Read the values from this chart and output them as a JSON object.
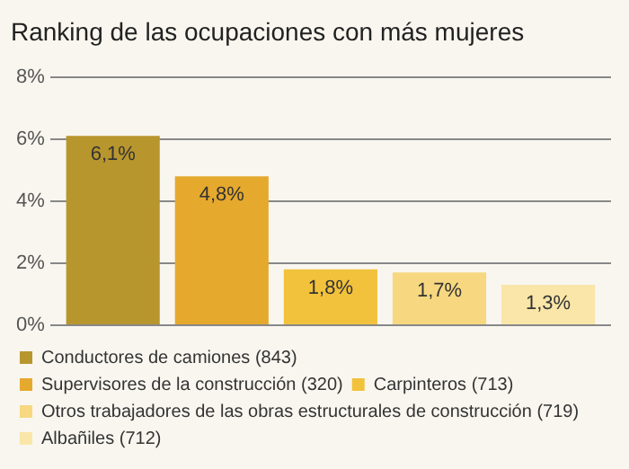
{
  "chart_data": {
    "type": "bar",
    "title": "Ranking de las ocupaciones con más mujeres",
    "categories": [
      null
    ],
    "series": [
      {
        "name": "Conductores de camiones (843)",
        "color": "#b8962e",
        "values": [
          6.1
        ],
        "value_labels": [
          "6,1%"
        ]
      },
      {
        "name": "Supervisores de la construcción (320)",
        "color": "#e5a92d",
        "values": [
          4.8
        ],
        "value_labels": [
          "4,8%"
        ]
      },
      {
        "name": "Carpinteros (713)",
        "color": "#f2c23c",
        "values": [
          1.8
        ],
        "value_labels": [
          "1,8%"
        ]
      },
      {
        "name": "Otros trabajadores de las obras estructurales de construcción (719)",
        "color": "#f7d880",
        "values": [
          1.7
        ],
        "value_labels": [
          "1,7%"
        ]
      },
      {
        "name": "Albañiles (712)",
        "color": "#fae6a8",
        "values": [
          1.3
        ],
        "value_labels": [
          "1,3%"
        ]
      }
    ],
    "ylim": [
      0,
      8
    ],
    "yticks": [
      {
        "value": 0,
        "label": "0%"
      },
      {
        "value": 2,
        "label": "2%"
      },
      {
        "value": 4,
        "label": "4%"
      },
      {
        "value": 6,
        "label": "6%"
      },
      {
        "value": 8,
        "label": "8%"
      }
    ],
    "grid": "y",
    "legend": "bottom",
    "tick_labels": "y"
  }
}
